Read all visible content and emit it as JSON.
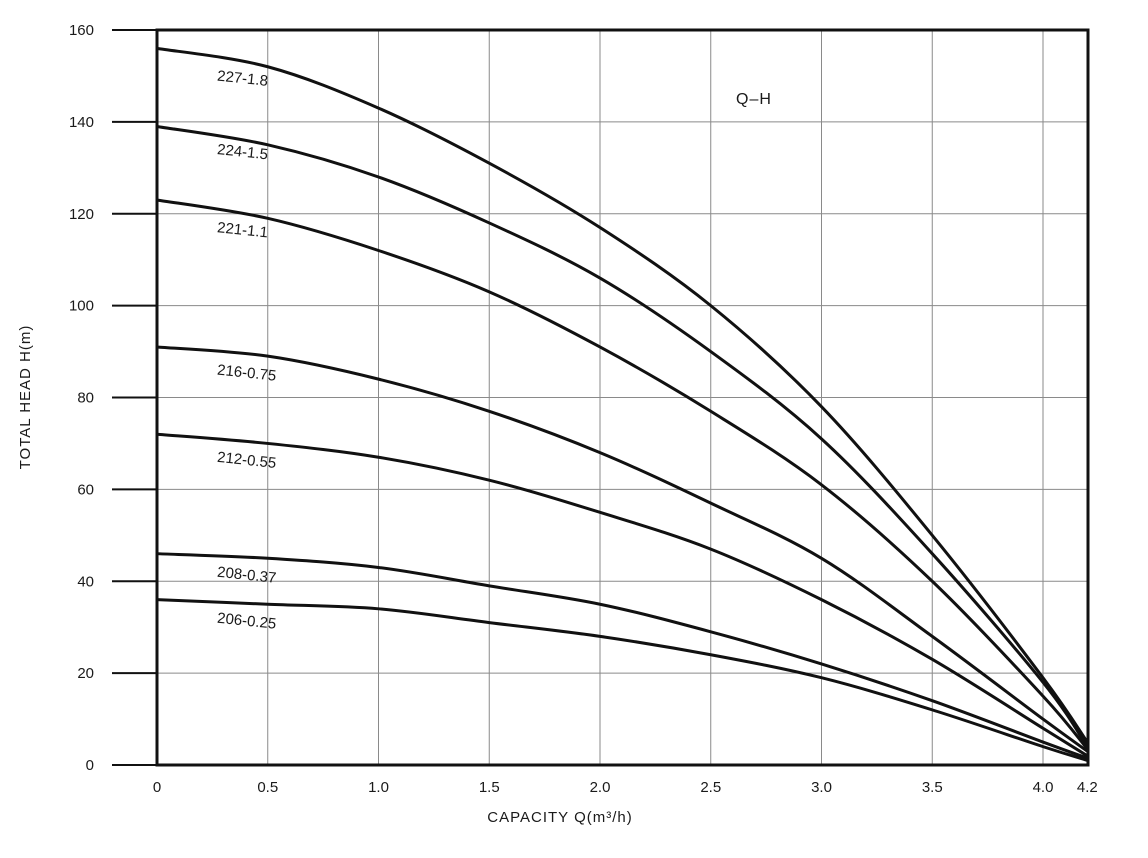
{
  "chart_data": {
    "type": "line",
    "title": "",
    "annotation": "Q–H",
    "xlabel": "CAPACITY  Q(m³/h)",
    "ylabel": "TOTAL HEAD  H(m)",
    "xlim": [
      0,
      4.2
    ],
    "ylim": [
      0,
      160
    ],
    "grid": true,
    "x_ticks": [
      {
        "value": 0,
        "label": "0"
      },
      {
        "value": 0.5,
        "label": "0.5"
      },
      {
        "value": 1.0,
        "label": "1.0"
      },
      {
        "value": 1.5,
        "label": "1.5"
      },
      {
        "value": 2.0,
        "label": "2.0"
      },
      {
        "value": 2.5,
        "label": "2.5"
      },
      {
        "value": 3.0,
        "label": "3.0"
      },
      {
        "value": 3.5,
        "label": "3.5"
      },
      {
        "value": 4.0,
        "label": "4.0"
      },
      {
        "value": 4.2,
        "label": "4.2"
      }
    ],
    "y_ticks": [
      {
        "value": 0,
        "label": "0"
      },
      {
        "value": 20,
        "label": "20"
      },
      {
        "value": 40,
        "label": "40"
      },
      {
        "value": 60,
        "label": "60"
      },
      {
        "value": 80,
        "label": "80"
      },
      {
        "value": 100,
        "label": "100"
      },
      {
        "value": 120,
        "label": "120"
      },
      {
        "value": 140,
        "label": "140"
      },
      {
        "value": 160,
        "label": "160"
      }
    ],
    "series": [
      {
        "name": "227-1.8",
        "label_at": [
          0.27,
          149
        ],
        "x": [
          0,
          0.5,
          1.0,
          1.5,
          2.0,
          2.5,
          3.0,
          3.5,
          4.0,
          4.2
        ],
        "y": [
          156,
          152,
          143,
          131,
          117,
          100,
          78,
          50,
          19,
          5
        ]
      },
      {
        "name": "224-1.5",
        "label_at": [
          0.27,
          133
        ],
        "x": [
          0,
          0.5,
          1.0,
          1.5,
          2.0,
          2.5,
          3.0,
          3.5,
          4.0,
          4.2
        ],
        "y": [
          139,
          135,
          128,
          118,
          106,
          90,
          71,
          46,
          18,
          4
        ]
      },
      {
        "name": "221-1.1",
        "label_at": [
          0.27,
          116
        ],
        "x": [
          0,
          0.5,
          1.0,
          1.5,
          2.0,
          2.5,
          3.0,
          3.5,
          4.0,
          4.2
        ],
        "y": [
          123,
          119,
          112,
          103,
          91,
          77,
          61,
          40,
          15,
          3.5
        ]
      },
      {
        "name": "216-0.75",
        "label_at": [
          0.27,
          85
        ],
        "x": [
          0,
          0.5,
          1.0,
          1.5,
          2.0,
          2.5,
          3.0,
          3.5,
          4.0,
          4.2
        ],
        "y": [
          91,
          89,
          84,
          77,
          68,
          57,
          45,
          28,
          10,
          3
        ]
      },
      {
        "name": "212-0.55",
        "label_at": [
          0.27,
          66
        ],
        "x": [
          0,
          0.5,
          1.0,
          1.5,
          2.0,
          2.5,
          3.0,
          3.5,
          4.0,
          4.2
        ],
        "y": [
          72,
          70,
          67,
          62,
          55,
          47,
          36,
          23,
          8,
          2
        ]
      },
      {
        "name": "208-0.37",
        "label_at": [
          0.27,
          41
        ],
        "x": [
          0,
          0.5,
          1.0,
          1.5,
          2.0,
          2.5,
          3.0,
          3.5,
          4.0,
          4.2
        ],
        "y": [
          46,
          45,
          43,
          39,
          35,
          29,
          22,
          14,
          5,
          1.5
        ]
      },
      {
        "name": "206-0.25",
        "label_at": [
          0.27,
          31
        ],
        "x": [
          0,
          0.5,
          1.0,
          1.5,
          2.0,
          2.5,
          3.0,
          3.5,
          4.0,
          4.2
        ],
        "y": [
          36,
          35,
          34,
          31,
          28,
          24,
          19,
          12,
          4,
          1
        ]
      }
    ]
  }
}
